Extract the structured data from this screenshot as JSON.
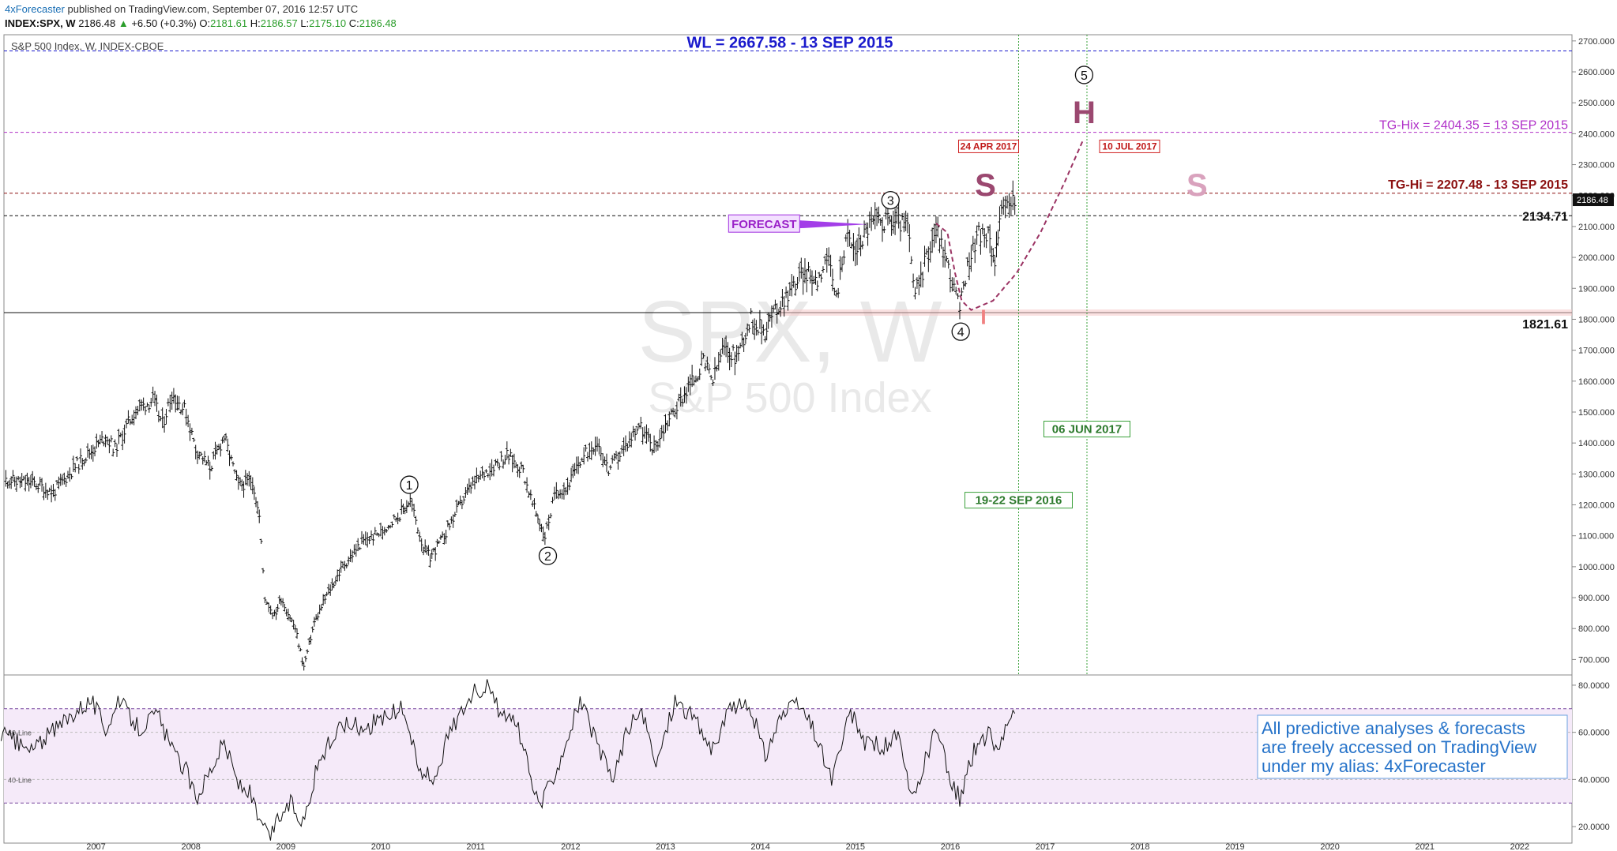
{
  "header": {
    "author": "4xForecaster",
    "published": "published on TradingView.com, September 07, 2016 12:57 UTC",
    "symbol": "INDEX:SPX, W",
    "last": "2186.48",
    "change_arrow": "▲",
    "change": "+6.50 (+0.3%)",
    "o_label": "O:",
    "open": "2181.61",
    "h_label": "H:",
    "high": "2186.57",
    "l_label": "L:",
    "low": "2175.10",
    "c_label": "C:",
    "close": "2186.48"
  },
  "chart_data": [
    {
      "type": "bar",
      "subtype": "ohlc-weekly",
      "title": "S&P 500 Index, W, INDEX-CBOE",
      "watermark": {
        "symbol": "SPX, W",
        "name": "S&P 500 Index"
      },
      "ylim": [
        650,
        2720
      ],
      "yticks": [
        "700.000",
        "800.000",
        "900.000",
        "1000.000",
        "1100.000",
        "1200.000",
        "1300.000",
        "1400.000",
        "1500.000",
        "1600.000",
        "1700.000",
        "1800.000",
        "1900.000",
        "2000.000",
        "2100.000",
        "2200.000",
        "2300.000",
        "2400.000",
        "2500.000",
        "2600.000",
        "2700.000"
      ],
      "x_axis_years": [
        "2007",
        "2008",
        "2009",
        "2010",
        "2011",
        "2012",
        "2013",
        "2014",
        "2015",
        "2016",
        "2017",
        "2018",
        "2019",
        "2020",
        "2021",
        "2022"
      ],
      "xlim": [
        2006.03,
        2022.55
      ],
      "current_price_label": "2186.48",
      "price_series": [
        [
          2006.05,
          1280
        ],
        [
          2006.35,
          1270
        ],
        [
          2006.55,
          1240
        ],
        [
          2006.8,
          1330
        ],
        [
          2007.1,
          1420
        ],
        [
          2007.2,
          1380
        ],
        [
          2007.4,
          1500
        ],
        [
          2007.6,
          1540
        ],
        [
          2007.7,
          1460
        ],
        [
          2007.8,
          1560
        ],
        [
          2007.95,
          1500
        ],
        [
          2008.05,
          1380
        ],
        [
          2008.2,
          1320
        ],
        [
          2008.35,
          1420
        ],
        [
          2008.5,
          1260
        ],
        [
          2008.65,
          1280
        ],
        [
          2008.72,
          1160
        ],
        [
          2008.78,
          900
        ],
        [
          2008.88,
          840
        ],
        [
          2008.95,
          900
        ],
        [
          2009.1,
          800
        ],
        [
          2009.19,
          676
        ],
        [
          2009.3,
          820
        ],
        [
          2009.45,
          920
        ],
        [
          2009.6,
          1000
        ],
        [
          2009.8,
          1080
        ],
        [
          2010.0,
          1110
        ],
        [
          2010.2,
          1170
        ],
        [
          2010.31,
          1217
        ],
        [
          2010.45,
          1060
        ],
        [
          2010.52,
          1030
        ],
        [
          2010.65,
          1090
        ],
        [
          2010.8,
          1180
        ],
        [
          2010.95,
          1260
        ],
        [
          2011.15,
          1320
        ],
        [
          2011.33,
          1360
        ],
        [
          2011.5,
          1310
        ],
        [
          2011.6,
          1200
        ],
        [
          2011.73,
          1100
        ],
        [
          2011.85,
          1250
        ],
        [
          2011.95,
          1250
        ],
        [
          2012.1,
          1340
        ],
        [
          2012.28,
          1410
        ],
        [
          2012.4,
          1310
        ],
        [
          2012.6,
          1400
        ],
        [
          2012.72,
          1460
        ],
        [
          2012.88,
          1380
        ],
        [
          2013.0,
          1460
        ],
        [
          2013.2,
          1560
        ],
        [
          2013.4,
          1660
        ],
        [
          2013.5,
          1600
        ],
        [
          2013.6,
          1700
        ],
        [
          2013.75,
          1680
        ],
        [
          2013.9,
          1800
        ],
        [
          2014.05,
          1760
        ],
        [
          2014.1,
          1800
        ],
        [
          2014.25,
          1870
        ],
        [
          2014.45,
          1950
        ],
        [
          2014.6,
          1930
        ],
        [
          2014.7,
          2000
        ],
        [
          2014.8,
          1870
        ],
        [
          2014.9,
          2070
        ],
        [
          2015.0,
          2020
        ],
        [
          2015.15,
          2110
        ],
        [
          2015.4,
          2120
        ],
        [
          2015.55,
          2100
        ],
        [
          2015.63,
          1870
        ],
        [
          2015.75,
          2000
        ],
        [
          2015.85,
          2100
        ],
        [
          2016.0,
          1950
        ],
        [
          2016.1,
          1830
        ],
        [
          2016.2,
          2000
        ],
        [
          2016.3,
          2080
        ],
        [
          2016.4,
          2060
        ],
        [
          2016.47,
          2000
        ],
        [
          2016.52,
          2120
        ],
        [
          2016.6,
          2170
        ],
        [
          2016.68,
          2186
        ]
      ],
      "forecast_path": [
        [
          2015.85,
          2110
        ],
        [
          2015.97,
          2080
        ],
        [
          2016.05,
          1950
        ],
        [
          2016.12,
          1860
        ],
        [
          2016.22,
          1830
        ],
        [
          2016.45,
          1860
        ],
        [
          2016.7,
          1950
        ],
        [
          2016.95,
          2080
        ],
        [
          2017.2,
          2240
        ],
        [
          2017.4,
          2380
        ]
      ],
      "levels": [
        {
          "label": "WL = 2667.58 - 13 SEP 2015",
          "value": 2667.58,
          "color": "#1a1acc",
          "style": "dashed"
        },
        {
          "label": "TG-Hix = 2404.35 = 13 SEP 2015",
          "value": 2404.35,
          "color": "#b030c8",
          "style": "dashed"
        },
        {
          "label": "TG-Hi = 2207.48 - 13 SEP 2015",
          "value": 2207.48,
          "color": "#8b1010",
          "style": "dashed"
        },
        {
          "label": "2134.71",
          "value": 2134.71,
          "color": "#111111",
          "style": "dashed"
        },
        {
          "label": "1821.61",
          "value": 1821.61,
          "color": "#111111",
          "style": "solid"
        }
      ],
      "vertical_markers": [
        {
          "label": "19-22 SEP 2016",
          "x": 2016.72,
          "label_y": 1210
        },
        {
          "label": "06 JUN 2017",
          "x": 2017.44,
          "label_y": 1440
        }
      ],
      "date_boxes": [
        {
          "label": "24 APR 2017",
          "x": 2016.72,
          "y": 2359
        },
        {
          "label": "10 JUL 2017",
          "x": 2017.49,
          "y": 2359
        }
      ],
      "wave_labels": [
        {
          "label": "1",
          "x": 2010.3,
          "y": 1265
        },
        {
          "label": "2",
          "x": 2011.76,
          "y": 1035
        },
        {
          "label": "3",
          "x": 2015.37,
          "y": 2185
        },
        {
          "label": "4",
          "x": 2016.11,
          "y": 1760
        },
        {
          "label": "5",
          "x": 2017.41,
          "y": 2590
        }
      ],
      "pattern_labels": [
        {
          "label": "S",
          "x": 2016.37,
          "y": 2235,
          "color": "#9b4870"
        },
        {
          "label": "H",
          "x": 2017.41,
          "y": 2470,
          "color": "#9b4870"
        },
        {
          "label": "S",
          "x": 2018.6,
          "y": 2235,
          "color": "#d9a2bd"
        },
        {
          "label": "I",
          "x": 2016.35,
          "y": 1820,
          "color": "#f08080"
        }
      ],
      "forecast_tag": {
        "label": "FORECAST",
        "x": 2014.38,
        "y": 2107
      }
    },
    {
      "type": "line",
      "subtype": "oscillator",
      "ylim": [
        13,
        84
      ],
      "yticks": [
        "20.0000",
        "40.0000",
        "60.0000",
        "80.0000"
      ],
      "band": [
        30,
        70
      ],
      "line_labels": [
        "60-Line",
        "40-Line"
      ],
      "series": [
        [
          2006.0,
          60
        ],
        [
          2006.3,
          52
        ],
        [
          2006.6,
          62
        ],
        [
          2006.8,
          70
        ],
        [
          2006.95,
          74
        ],
        [
          2007.1,
          62
        ],
        [
          2007.25,
          73
        ],
        [
          2007.45,
          62
        ],
        [
          2007.65,
          68
        ],
        [
          2007.8,
          52
        ],
        [
          2007.95,
          44
        ],
        [
          2008.05,
          32
        ],
        [
          2008.2,
          44
        ],
        [
          2008.35,
          56
        ],
        [
          2008.5,
          38
        ],
        [
          2008.62,
          34
        ],
        [
          2008.72,
          22
        ],
        [
          2008.82,
          15
        ],
        [
          2008.93,
          24
        ],
        [
          2009.05,
          30
        ],
        [
          2009.18,
          22
        ],
        [
          2009.35,
          48
        ],
        [
          2009.6,
          64
        ],
        [
          2009.85,
          62
        ],
        [
          2010.0,
          66
        ],
        [
          2010.25,
          70
        ],
        [
          2010.4,
          44
        ],
        [
          2010.55,
          40
        ],
        [
          2010.75,
          62
        ],
        [
          2010.95,
          76
        ],
        [
          2011.1,
          80
        ],
        [
          2011.3,
          66
        ],
        [
          2011.45,
          62
        ],
        [
          2011.6,
          36
        ],
        [
          2011.7,
          30
        ],
        [
          2011.9,
          50
        ],
        [
          2012.1,
          74
        ],
        [
          2012.3,
          52
        ],
        [
          2012.45,
          40
        ],
        [
          2012.6,
          62
        ],
        [
          2012.75,
          68
        ],
        [
          2012.9,
          46
        ],
        [
          2013.1,
          74
        ],
        [
          2013.3,
          66
        ],
        [
          2013.5,
          52
        ],
        [
          2013.7,
          72
        ],
        [
          2013.9,
          70
        ],
        [
          2014.05,
          50
        ],
        [
          2014.2,
          66
        ],
        [
          2014.4,
          72
        ],
        [
          2014.55,
          62
        ],
        [
          2014.75,
          40
        ],
        [
          2014.95,
          68
        ],
        [
          2015.1,
          56
        ],
        [
          2015.3,
          54
        ],
        [
          2015.45,
          58
        ],
        [
          2015.6,
          30
        ],
        [
          2015.72,
          46
        ],
        [
          2015.85,
          62
        ],
        [
          2016.0,
          40
        ],
        [
          2016.1,
          32
        ],
        [
          2016.25,
          52
        ],
        [
          2016.4,
          60
        ],
        [
          2016.5,
          52
        ],
        [
          2016.6,
          66
        ],
        [
          2016.68,
          68
        ]
      ]
    }
  ],
  "note": {
    "line1": "All predictive analyses & forecasts",
    "line2": "are freely accessed on TradingView",
    "line3": "under my alias: 4xForecaster"
  },
  "colors": {
    "price_bar": "#111111",
    "forecast_path": "#9b3363",
    "vertical_marker": "#3aa03a",
    "band_fill": "#f5eaf9",
    "note_text": "#2673c9"
  }
}
